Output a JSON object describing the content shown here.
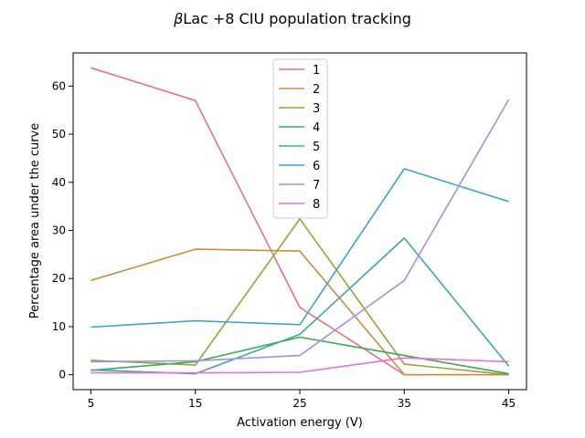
{
  "chart_data": {
    "type": "line",
    "title": "βLac +8 CIU population tracking",
    "title_symbol": "β",
    "title_rest": "Lac +8 CIU population tracking",
    "xlabel": "Activation energy (V)",
    "ylabel": "Percentage area under the curve",
    "x": [
      5,
      15,
      25,
      35,
      45
    ],
    "x_ticks": [
      5,
      15,
      25,
      35,
      45
    ],
    "y_ticks": [
      0,
      10,
      20,
      30,
      40,
      50,
      60
    ],
    "xlim": [
      3.3,
      46.7
    ],
    "ylim": [
      -3.1,
      66.9
    ],
    "grid": false,
    "legend_position": "top-center",
    "series": [
      {
        "name": "1",
        "color": "#e8717f",
        "values": [
          63.8,
          57.0,
          14.0,
          0.0,
          0.0
        ]
      },
      {
        "name": "2",
        "color": "#cf8c3a",
        "values": [
          19.6,
          26.1,
          25.7,
          0.0,
          0.0
        ]
      },
      {
        "name": "3",
        "color": "#9ea13a",
        "values": [
          3.0,
          2.0,
          32.4,
          2.2,
          0.0
        ]
      },
      {
        "name": "4",
        "color": "#3aab54",
        "values": [
          0.9,
          2.7,
          7.8,
          4.0,
          0.2
        ]
      },
      {
        "name": "5",
        "color": "#3aaba0",
        "values": [
          1.0,
          0.2,
          8.4,
          28.4,
          1.8
        ]
      },
      {
        "name": "6",
        "color": "#3aa6ce",
        "values": [
          9.9,
          11.2,
          10.4,
          42.8,
          36.0
        ]
      },
      {
        "name": "7",
        "color": "#a291e6",
        "values": [
          2.7,
          2.9,
          4.0,
          19.6,
          57.2
        ]
      },
      {
        "name": "8",
        "color": "#ec6ed8",
        "values": [
          0.4,
          0.4,
          0.5,
          3.5,
          2.7
        ]
      }
    ]
  }
}
